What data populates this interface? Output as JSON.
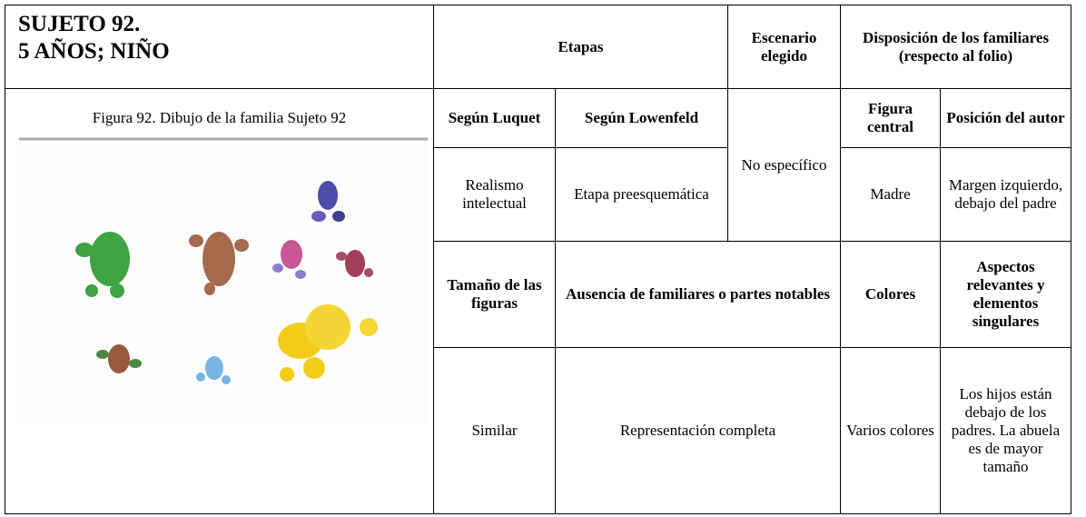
{
  "header": {
    "subject": "SUJETO 92.",
    "age_gender": "5 AÑOS; NIÑO"
  },
  "figure": {
    "caption": "Figura 92. Dibujo de la familia Sujeto 92"
  },
  "table": {
    "headers": {
      "stages": "Etapas",
      "scenario": "Escenario elegido",
      "disposition": "Disposición de los familiares",
      "disposition_note": "(respecto al folio)"
    },
    "stage_headers": [
      "Según Luquet",
      "Según Lowenfeld"
    ],
    "disposition_headers": [
      "Figura central",
      "Posición del autor"
    ],
    "stage_values": [
      "Realismo intelectual",
      "Etapa preesquemática"
    ],
    "scenario_value": "No específico",
    "disposition_values": [
      "Madre",
      "Margen izquierdo, debajo del padre"
    ],
    "second_headers": [
      "Tamaño de las figuras",
      "Ausencia de familiares o partes notables",
      "Colores",
      "Aspectos relevantes y elementos singulares"
    ],
    "second_values": [
      "Similar",
      "Representación completa",
      "Varios colores",
      "Los hijos están debajo de los padres. La abuela es de mayor tamaño"
    ]
  }
}
